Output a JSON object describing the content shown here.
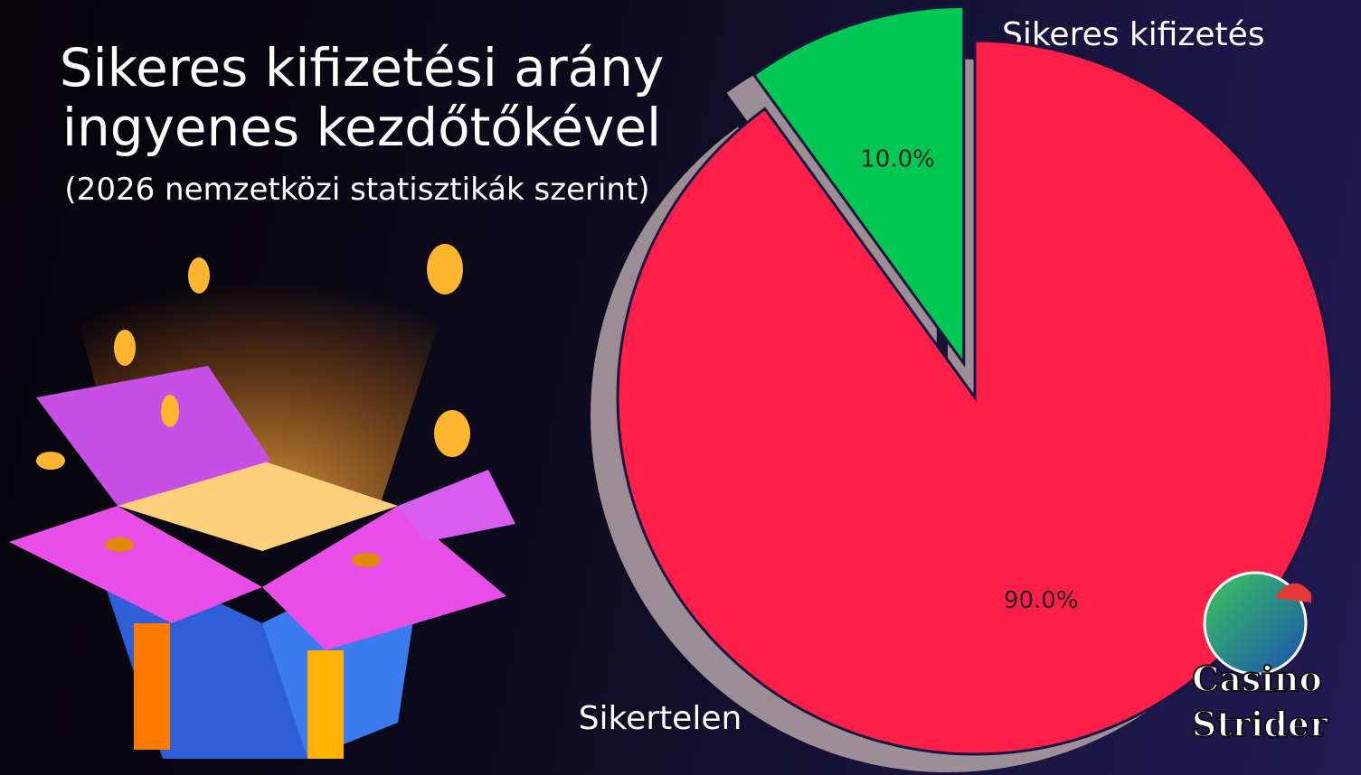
{
  "chart_data": {
    "type": "pie",
    "title": "Sikeres kifizetési arány ingyenes kezdőtőkével",
    "subtitle": "(2026 nemzetközi statisztikák szerint)",
    "categories": [
      "Sikeres kifizetés",
      "Sikertelen"
    ],
    "values": [
      10.0,
      90.0
    ],
    "value_labels": [
      "10.0%",
      "90.0%"
    ],
    "colors": [
      "#00c853",
      "#ff1f48"
    ],
    "explode": [
      true,
      false
    ],
    "shadow": true
  },
  "logo": {
    "lines": [
      "Casino",
      "Strider"
    ]
  }
}
